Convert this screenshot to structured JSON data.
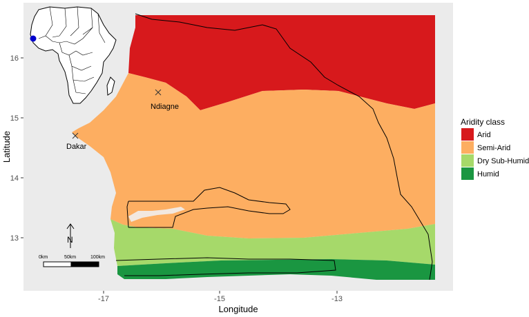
{
  "map": {
    "xlabel": "Longitude",
    "ylabel": "Latitude",
    "x_ticks": [
      "-17",
      "-15",
      "-13"
    ],
    "y_ticks": [
      "16",
      "15",
      "14",
      "13"
    ],
    "places": [
      {
        "name": "Ndiagne"
      },
      {
        "name": "Dakar"
      }
    ],
    "north_label": "N",
    "scale_labels": [
      "0km",
      "50km",
      "100km"
    ]
  },
  "legend": {
    "title": "Aridity class",
    "items": [
      {
        "label": "Arid",
        "color": "#d7191c"
      },
      {
        "label": "Semi-Arid",
        "color": "#fdae61"
      },
      {
        "label": "Dry Sub-Humid",
        "color": "#a6d96a"
      },
      {
        "label": "Humid",
        "color": "#1a9641"
      }
    ]
  },
  "colors": {
    "panel_background": "#ebebeb",
    "inset_highlight": "#0000cc"
  }
}
